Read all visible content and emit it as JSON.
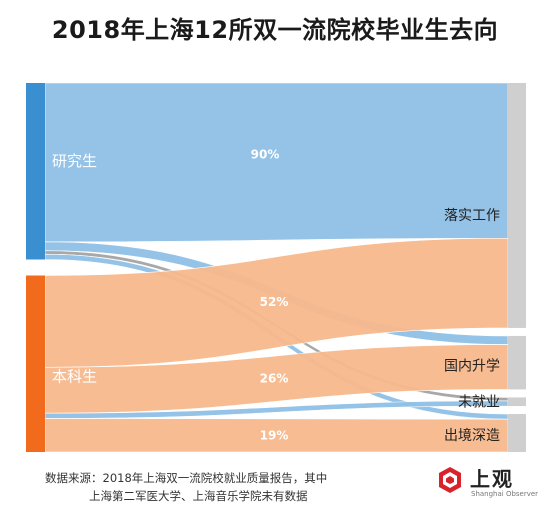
{
  "title": "2018年上海12所双一流院校毕业生去向",
  "source_line1": "数据来源：2018年上海双一流院校就业质量报告，其中",
  "source_line2": "上海第二军医大学、上海音乐学院未有数据",
  "logo": {
    "name": "上观",
    "sub": "Shanghai Observer",
    "mark": "logo-emblem"
  },
  "colors": {
    "graduate": "#3a8fd0",
    "undergraduate": "#f26b1d",
    "graduate_flow": "#8ec0e6",
    "undergraduate_flow": "#f8b88c",
    "target_bar": "#cfcfcf",
    "unemployed_flow": "#a3a3a3"
  },
  "chart_data": {
    "type": "sankey",
    "title": "2018年上海12所双一流院校毕业生去向",
    "sources": [
      {
        "id": "grad",
        "label": "研究生"
      },
      {
        "id": "under",
        "label": "本科生"
      }
    ],
    "targets": [
      {
        "id": "job",
        "label": "落实工作"
      },
      {
        "id": "study",
        "label": "国内升学"
      },
      {
        "id": "unemp",
        "label": "未就业"
      },
      {
        "id": "abroad",
        "label": "出境深造"
      }
    ],
    "flows": [
      {
        "source": "grad",
        "target": "job",
        "value": 90,
        "label": "90%"
      },
      {
        "source": "grad",
        "target": "study",
        "value": 5
      },
      {
        "source": "grad",
        "target": "unemp",
        "value": 2
      },
      {
        "source": "grad",
        "target": "abroad",
        "value": 3
      },
      {
        "source": "under",
        "target": "job",
        "value": 52,
        "label": "52%"
      },
      {
        "source": "under",
        "target": "study",
        "value": 26,
        "label": "26%"
      },
      {
        "source": "under",
        "target": "unemp",
        "value": 3
      },
      {
        "source": "under",
        "target": "abroad",
        "value": 19,
        "label": "19%"
      }
    ]
  }
}
